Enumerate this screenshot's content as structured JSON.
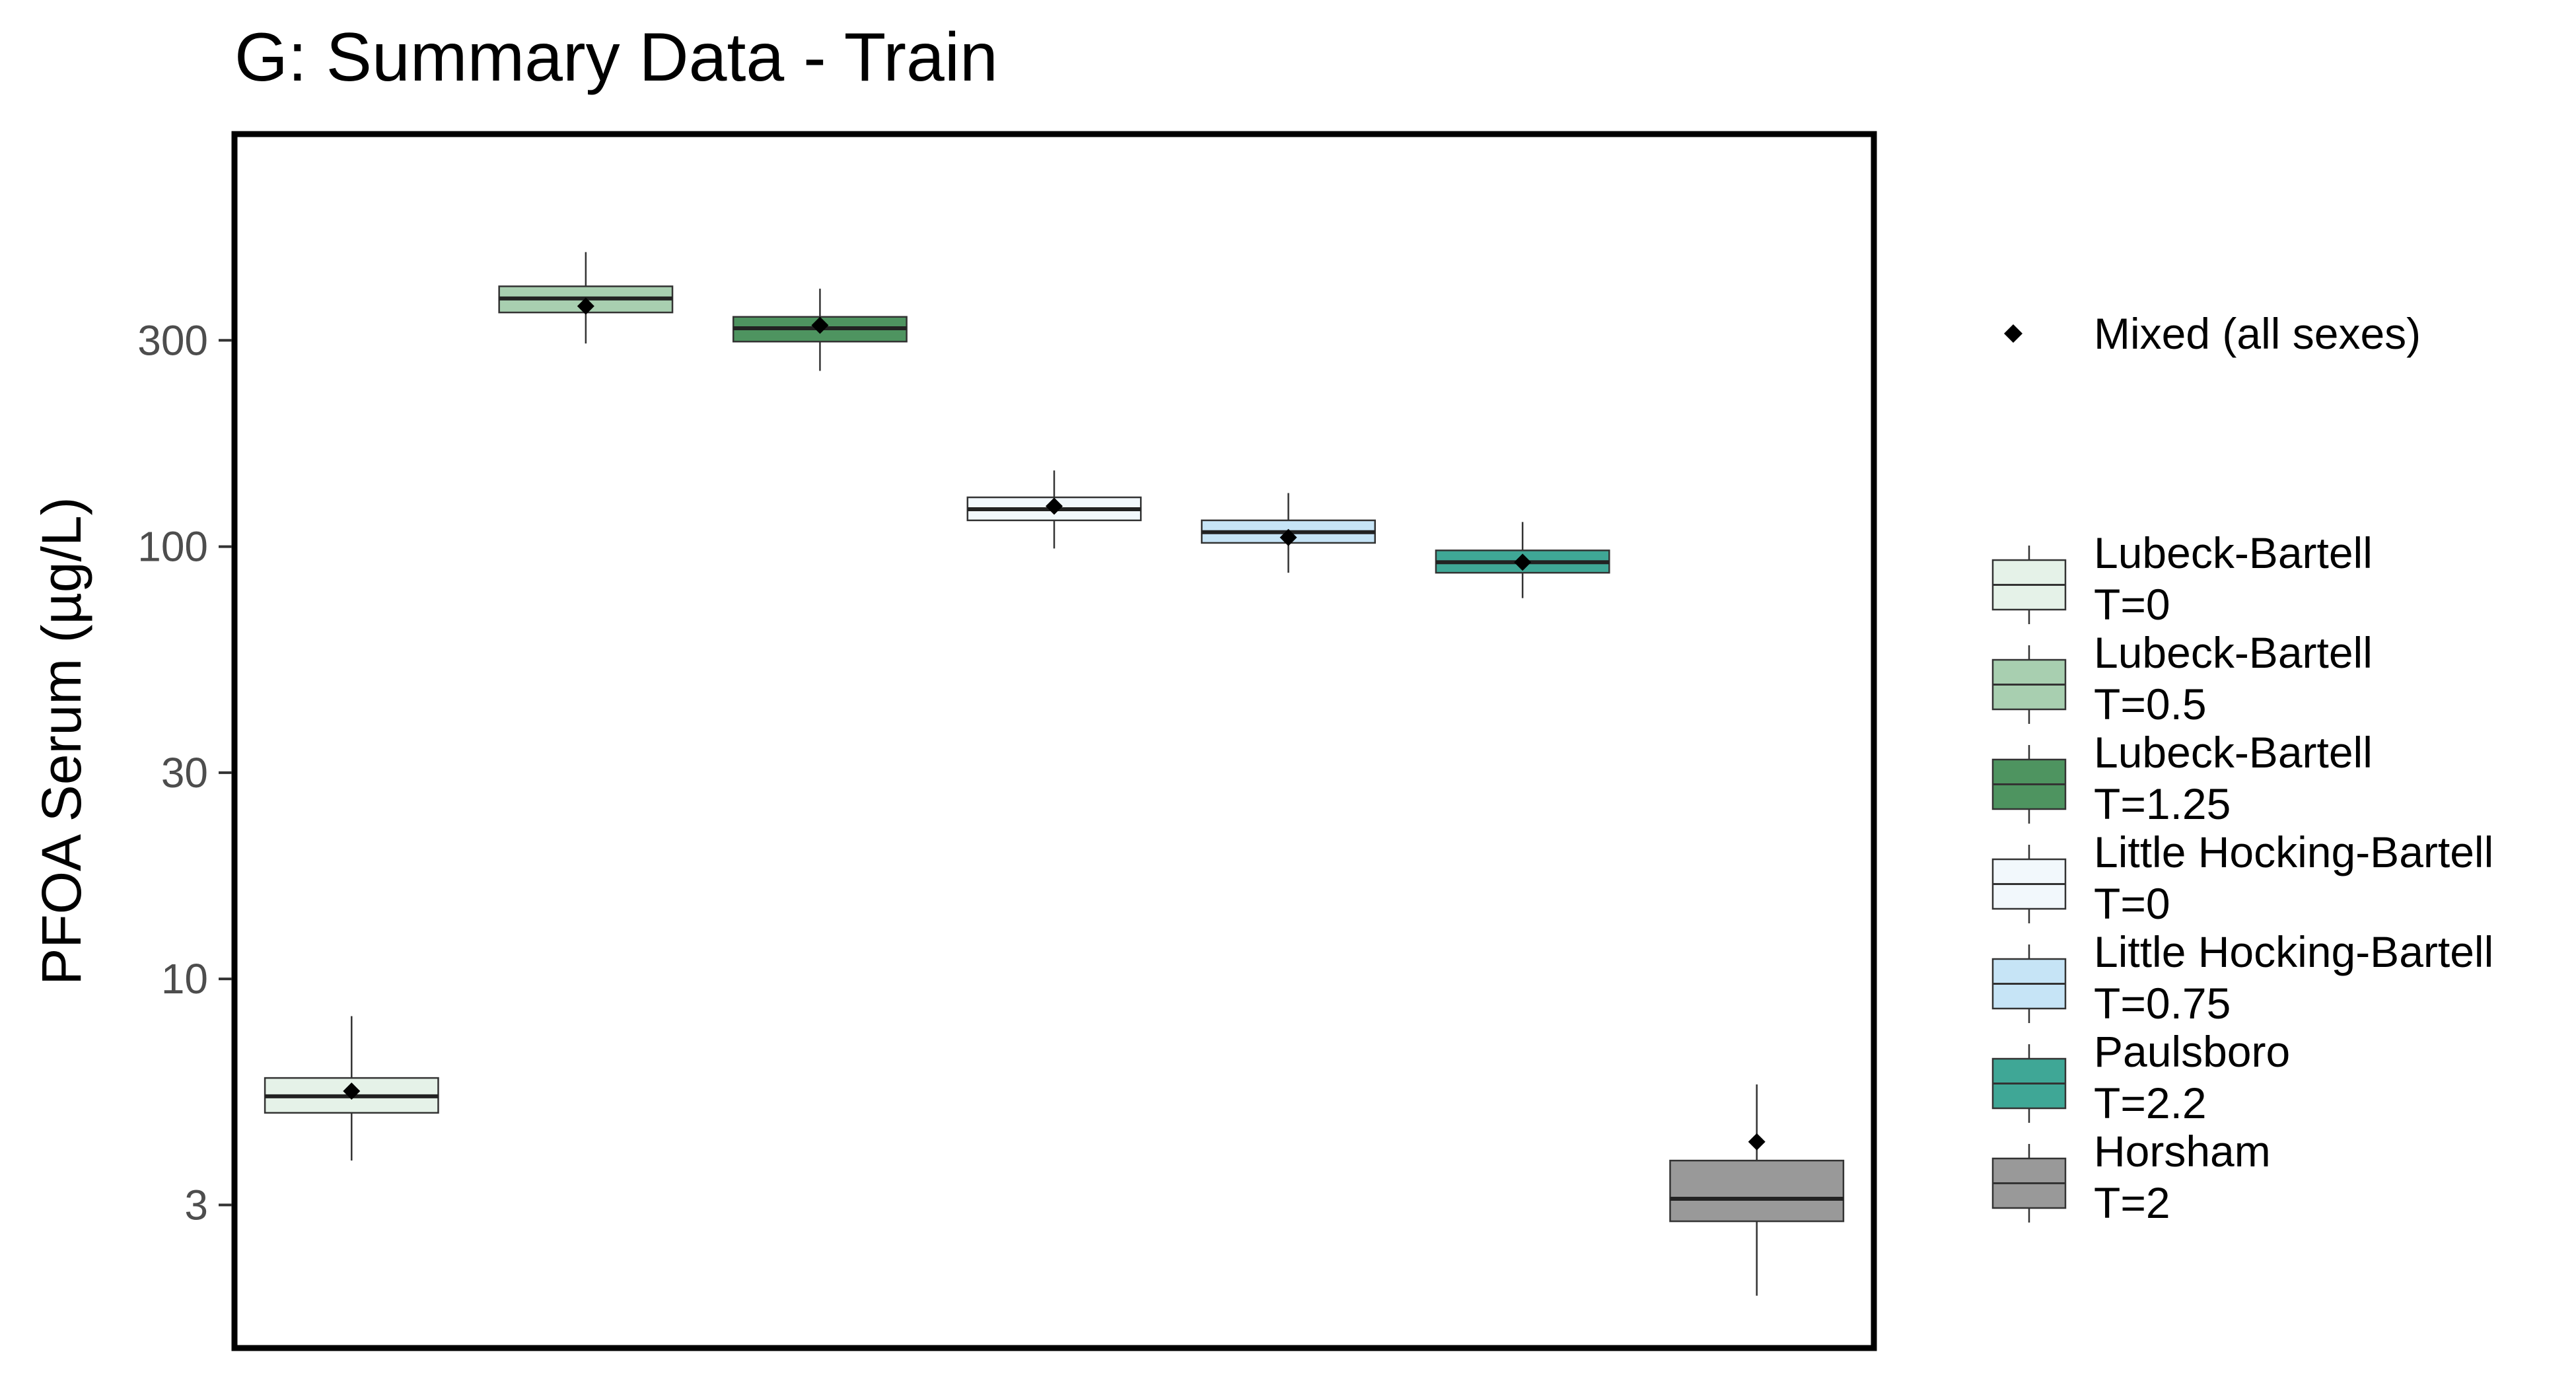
{
  "chart_data": {
    "type": "boxplot",
    "title": "G: Summary Data - Train",
    "ylabel": "PFOA Serum (µg/L)",
    "xlabel": "",
    "yscale": "log",
    "ylim": [
      1.4,
      900
    ],
    "yticks": [
      {
        "value": 3,
        "label": "3"
      },
      {
        "value": 10,
        "label": "10"
      },
      {
        "value": 30,
        "label": "30"
      },
      {
        "value": 100,
        "label": "100"
      },
      {
        "value": 300,
        "label": "300"
      }
    ],
    "grid": false,
    "legend_position": "right",
    "mean_legend_label": "Mixed (all sexes)",
    "series": [
      {
        "line1": "Lubeck-Bartell",
        "line2": "T=0",
        "color": "#e5f2e8",
        "whisker_low": 3.8,
        "q1": 4.9,
        "median": 5.35,
        "q3": 5.9,
        "whisker_high": 8.2,
        "mean": 5.5
      },
      {
        "line1": "Lubeck-Bartell",
        "line2": "T=0.5",
        "color": "#a8cfb0",
        "whisker_low": 295,
        "q1": 348,
        "median": 375,
        "q3": 400,
        "whisker_high": 480,
        "mean": 360
      },
      {
        "line1": "Lubeck-Bartell",
        "line2": "T=1.25",
        "color": "#4e9460",
        "whisker_low": 255,
        "q1": 298,
        "median": 320,
        "q3": 340,
        "whisker_high": 395,
        "mean": 325
      },
      {
        "line1": "Little Hocking-Bartell",
        "line2": "T=0",
        "color": "#f2f8fc",
        "whisker_low": 99,
        "q1": 115,
        "median": 122,
        "q3": 130,
        "whisker_high": 150,
        "mean": 124
      },
      {
        "line1": "Little Hocking-Bartell",
        "line2": "T=0.75",
        "color": "#c6e4f6",
        "whisker_low": 87,
        "q1": 102,
        "median": 108,
        "q3": 115,
        "whisker_high": 133,
        "mean": 105
      },
      {
        "line1": "Paulsboro",
        "line2": "T=2.2",
        "color": "#3fa796",
        "whisker_low": 76,
        "q1": 87,
        "median": 92,
        "q3": 98,
        "whisker_high": 114,
        "mean": 92
      },
      {
        "line1": "Horsham",
        "line2": "T=2",
        "color": "#999999",
        "whisker_low": 1.85,
        "q1": 2.75,
        "median": 3.1,
        "q3": 3.8,
        "whisker_high": 5.7,
        "mean": 4.2
      }
    ]
  }
}
